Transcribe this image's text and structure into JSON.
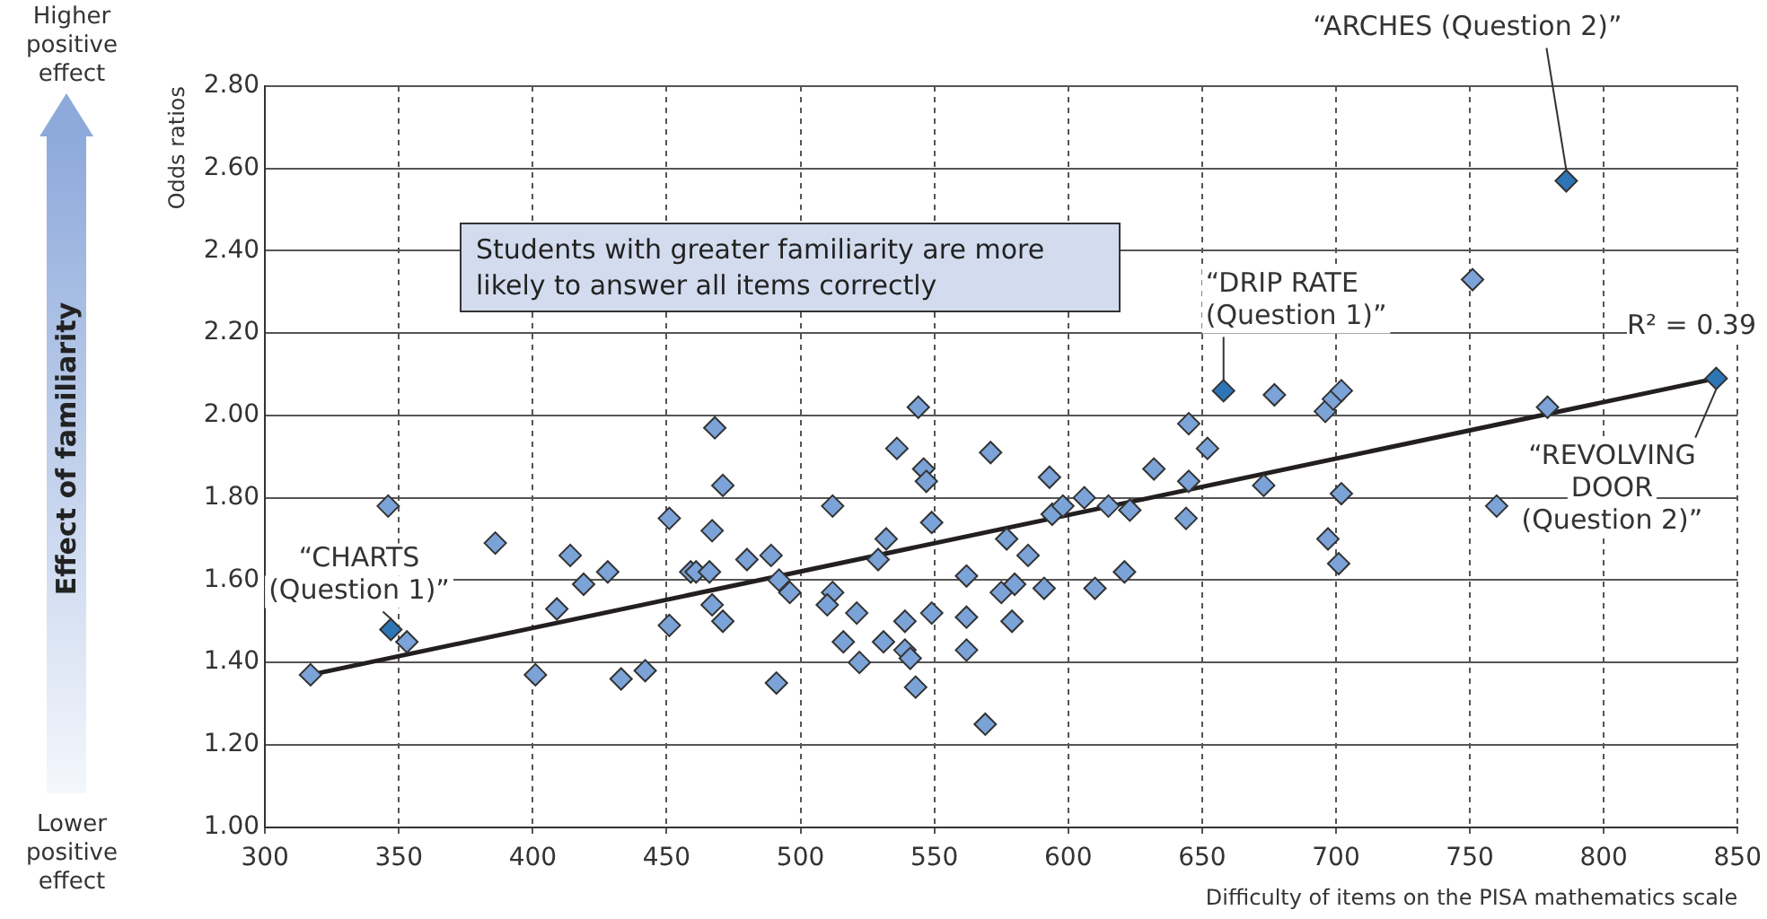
{
  "chart_data": {
    "type": "scatter",
    "xlabel": "Difficulty of items on the PISA mathematics scale",
    "ylabel": "Odds ratios",
    "xlim": [
      300,
      850
    ],
    "xticks": [
      300,
      350,
      400,
      450,
      500,
      550,
      600,
      650,
      700,
      750,
      800,
      850
    ],
    "ylim": [
      1,
      2.8
    ],
    "yticks": [
      {
        "value": 1,
        "label": "1.00"
      },
      {
        "value": 1.2,
        "label": "1.20"
      },
      {
        "value": 1.4,
        "label": "1.40"
      },
      {
        "value": 1.6,
        "label": "1.60"
      },
      {
        "value": 1.8,
        "label": "1.80"
      },
      {
        "value": 2,
        "label": "2.00"
      },
      {
        "value": 2.2,
        "label": "2.20"
      },
      {
        "value": 2.4,
        "label": "2.40"
      },
      {
        "value": 2.6,
        "label": "2.60"
      },
      {
        "value": 2.8,
        "label": "2.80"
      }
    ],
    "grid": true,
    "legend": false,
    "marker": "diamond",
    "series": [
      {
        "color": "#7ba3d8",
        "x": [
          317,
          346,
          347,
          353,
          386,
          401,
          409,
          414,
          419,
          428,
          433,
          442,
          451,
          451,
          459,
          468,
          471,
          467,
          461,
          466,
          480,
          489,
          467,
          471,
          492,
          496,
          491,
          512,
          512,
          510,
          521,
          516,
          522,
          529,
          532,
          536,
          544,
          546,
          547,
          549,
          549,
          539,
          531,
          539,
          541,
          543,
          562,
          562,
          562,
          571,
          569,
          577,
          575,
          580,
          579,
          585,
          591,
          593,
          594,
          598,
          606,
          610,
          615,
          623,
          621,
          632,
          645,
          645,
          644,
          652,
          658,
          677,
          673,
          696,
          699,
          702,
          702,
          697,
          701,
          786,
          751,
          842,
          779,
          760
        ],
        "values": [
          1.37,
          1.78,
          1.48,
          1.45,
          1.69,
          1.37,
          1.53,
          1.66,
          1.59,
          1.62,
          1.36,
          1.38,
          1.75,
          1.49,
          1.62,
          1.97,
          1.83,
          1.72,
          1.62,
          1.62,
          1.65,
          1.66,
          1.54,
          1.5,
          1.6,
          1.57,
          1.35,
          1.78,
          1.57,
          1.54,
          1.52,
          1.45,
          1.4,
          1.65,
          1.7,
          1.92,
          2.02,
          1.87,
          1.84,
          1.74,
          1.52,
          1.5,
          1.45,
          1.43,
          1.41,
          1.34,
          1.61,
          1.51,
          1.43,
          1.91,
          1.25,
          1.7,
          1.57,
          1.59,
          1.5,
          1.66,
          1.58,
          1.85,
          1.76,
          1.78,
          1.8,
          1.58,
          1.78,
          1.77,
          1.62,
          1.87,
          1.98,
          1.84,
          1.75,
          1.92,
          2.06,
          2.05,
          1.83,
          2.01,
          2.04,
          2.06,
          1.81,
          1.7,
          1.64,
          2.57,
          2.33,
          2.09,
          2.02,
          1.78
        ],
        "colors": [
          "#7ba3d8",
          "#7ba3d8",
          "#2e75b6",
          "#7ba3d8",
          "#7ba3d8",
          "#7ba3d8",
          "#7ba3d8",
          "#7ba3d8",
          "#7ba3d8",
          "#7ba3d8",
          "#7ba3d8",
          "#7ba3d8",
          "#7ba3d8",
          "#7ba3d8",
          "#7ba3d8",
          "#7ba3d8",
          "#7ba3d8",
          "#7ba3d8",
          "#7ba3d8",
          "#7ba3d8",
          "#7ba3d8",
          "#7ba3d8",
          "#7ba3d8",
          "#7ba3d8",
          "#7ba3d8",
          "#7ba3d8",
          "#7ba3d8",
          "#7ba3d8",
          "#7ba3d8",
          "#7ba3d8",
          "#7ba3d8",
          "#7ba3d8",
          "#7ba3d8",
          "#7ba3d8",
          "#7ba3d8",
          "#7ba3d8",
          "#7ba3d8",
          "#7ba3d8",
          "#7ba3d8",
          "#7ba3d8",
          "#7ba3d8",
          "#7ba3d8",
          "#7ba3d8",
          "#7ba3d8",
          "#7ba3d8",
          "#7ba3d8",
          "#7ba3d8",
          "#7ba3d8",
          "#7ba3d8",
          "#7ba3d8",
          "#7ba3d8",
          "#7ba3d8",
          "#7ba3d8",
          "#7ba3d8",
          "#7ba3d8",
          "#7ba3d8",
          "#7ba3d8",
          "#7ba3d8",
          "#7ba3d8",
          "#7ba3d8",
          "#7ba3d8",
          "#7ba3d8",
          "#7ba3d8",
          "#7ba3d8",
          "#7ba3d8",
          "#7ba3d8",
          "#7ba3d8",
          "#7ba3d8",
          "#7ba3d8",
          "#7ba3d8",
          "#2e75b6",
          "#7ba3d8",
          "#7ba3d8",
          "#7ba3d8",
          "#7ba3d8",
          "#7ba3d8",
          "#7ba3d8",
          "#7ba3d8",
          "#7ba3d8",
          "#2e75b6",
          "#7ba3d8",
          "#2e75b6",
          "#7ba3d8",
          "#7ba3d8"
        ]
      },
      {
        "type": "line",
        "color": "#231f20",
        "marker": "none",
        "x": [
          317,
          842
        ],
        "values": [
          1.37,
          2.09
        ]
      }
    ],
    "annotations": [
      "Students with greater familiarity are more likely to answer all items correctly",
      "R² = 0.39",
      "Higher positive effect",
      "Effect of familiarity",
      "Lower positive effect",
      {
        "text": "“CHARTS (Question 1)”",
        "x": 347,
        "y": 1.48
      },
      {
        "text": "“DRIP RATE (Question 1)”",
        "x": 658,
        "y": 2.06
      },
      {
        "text": "“ARCHES (Question 2)”",
        "x": 786,
        "y": 2.57
      },
      {
        "text": "“REVOLVING DOOR (Question 2)”",
        "x": 842,
        "y": 2.09
      }
    ]
  }
}
